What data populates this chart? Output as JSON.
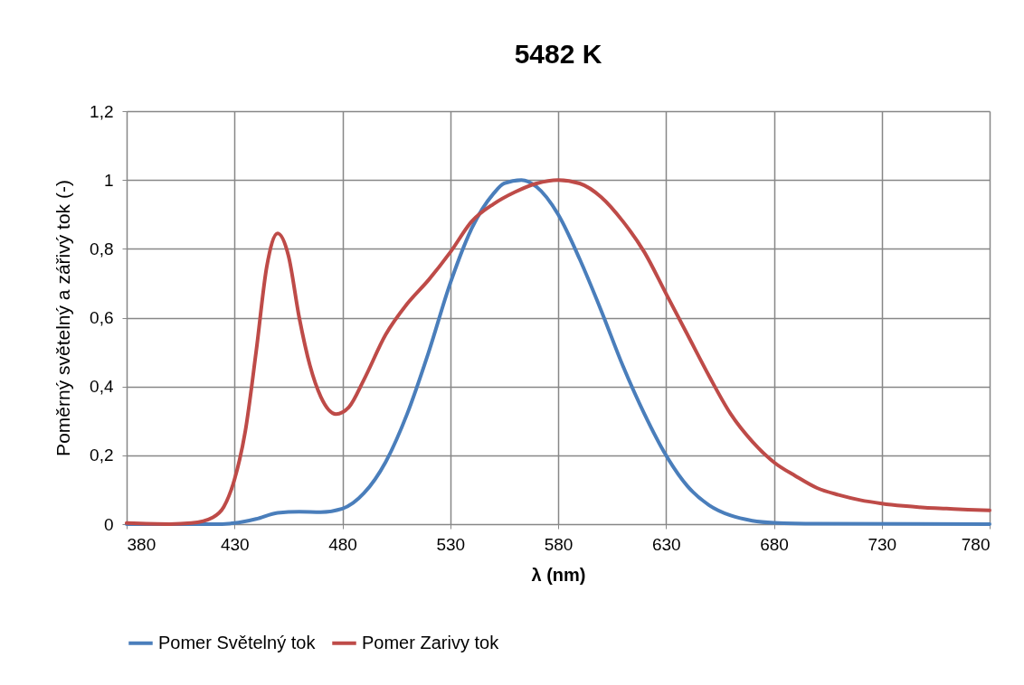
{
  "chart_data": {
    "type": "line",
    "title": "5482 K",
    "xlabel": "λ (nm)",
    "ylabel": "Poměrný světelný a zářivý tok (-)",
    "xlim": [
      380,
      780
    ],
    "xticks": [
      380,
      430,
      480,
      530,
      580,
      630,
      680,
      730,
      780
    ],
    "ylim": [
      0,
      1.2
    ],
    "yticks": [
      0,
      {
        "value": 0.2,
        "label": "0,2"
      },
      {
        "value": 0.4,
        "label": "0,4"
      },
      {
        "value": 0.6,
        "label": "0,6"
      },
      {
        "value": 0.8,
        "label": "0,8"
      },
      1,
      {
        "value": 1.2,
        "label": "1,2"
      }
    ],
    "grid": true,
    "legend": "bottom",
    "marker": "none",
    "line_style": "solid",
    "series": [
      {
        "name": "Pomer Světelný tok",
        "color": "#4a7ebb",
        "x": [
          380,
          420,
          430,
          440,
          450,
          460,
          470,
          480,
          490,
          500,
          510,
          520,
          530,
          540,
          550,
          555,
          563,
          570,
          580,
          590,
          600,
          610,
          620,
          630,
          640,
          650,
          660,
          670,
          680,
          700,
          780
        ],
        "values": [
          0,
          0,
          0.003,
          0.015,
          0.033,
          0.036,
          0.035,
          0.045,
          0.09,
          0.18,
          0.32,
          0.5,
          0.7,
          0.86,
          0.96,
          0.99,
          1.0,
          0.98,
          0.9,
          0.77,
          0.62,
          0.46,
          0.32,
          0.2,
          0.11,
          0.055,
          0.025,
          0.01,
          0.004,
          0.001,
          0
        ]
      },
      {
        "name": "Pomer Zarivy tok",
        "color": "#be4b48",
        "x": [
          380,
          400,
          410,
          420,
          425,
          430,
          435,
          440,
          445,
          450,
          455,
          460,
          465,
          470,
          477,
          483,
          490,
          500,
          510,
          520,
          530,
          540,
          550,
          560,
          570,
          580,
          590,
          600,
          610,
          620,
          630,
          640,
          650,
          660,
          670,
          680,
          690,
          700,
          710,
          720,
          730,
          740,
          750,
          760,
          770,
          780
        ],
        "values": [
          0.003,
          0,
          0.003,
          0.02,
          0.05,
          0.13,
          0.27,
          0.5,
          0.75,
          0.845,
          0.78,
          0.6,
          0.46,
          0.37,
          0.32,
          0.34,
          0.42,
          0.55,
          0.64,
          0.71,
          0.79,
          0.88,
          0.93,
          0.965,
          0.99,
          1.0,
          0.99,
          0.95,
          0.88,
          0.79,
          0.67,
          0.55,
          0.43,
          0.32,
          0.24,
          0.18,
          0.14,
          0.105,
          0.085,
          0.07,
          0.06,
          0.053,
          0.048,
          0.045,
          0.042,
          0.04
        ]
      }
    ]
  }
}
